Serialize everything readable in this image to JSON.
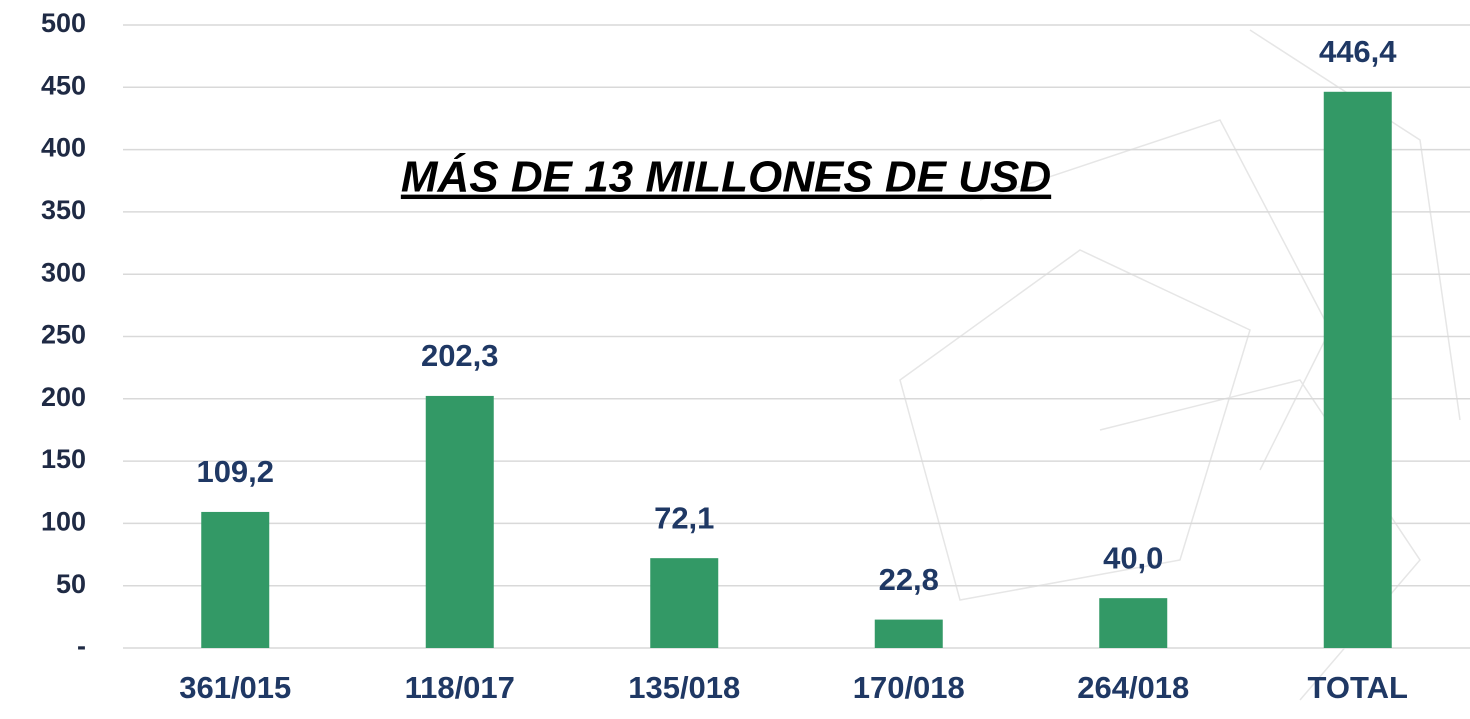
{
  "chart_data": {
    "type": "bar",
    "annotation": "MÁS DE 13 MILLONES DE USD",
    "categories": [
      "361/015",
      "118/017",
      "135/018",
      "170/018",
      "264/018",
      "TOTAL"
    ],
    "values": [
      109.2,
      202.3,
      72.1,
      22.8,
      40.0,
      446.4
    ],
    "value_labels": [
      "109,2",
      "202,3",
      "72,1",
      "22,8",
      "40,0",
      "446,4"
    ],
    "color": "#339966",
    "ylim": [
      0,
      500
    ],
    "yticks": [
      {
        "value": 0,
        "label": "-"
      },
      50,
      100,
      150,
      200,
      250,
      300,
      350,
      400,
      450,
      500
    ],
    "grid": true
  }
}
